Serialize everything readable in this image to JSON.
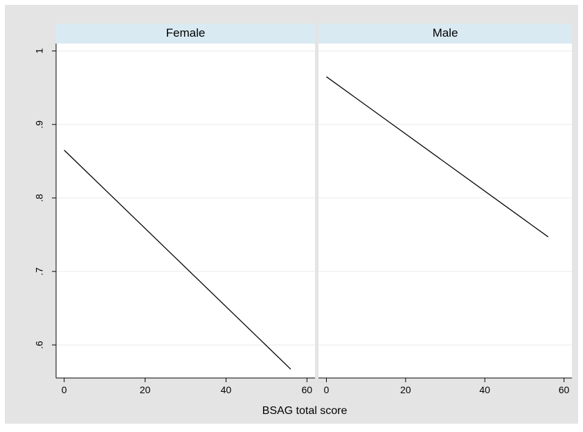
{
  "chart_data": {
    "type": "line",
    "xlabel": "BSAG total score",
    "ylabel": "",
    "xlim": [
      -2,
      62
    ],
    "ylim": [
      0.555,
      1.01
    ],
    "xticks": [
      0,
      20,
      40,
      60
    ],
    "xtick_labels": [
      "0",
      "20",
      "40",
      "60"
    ],
    "yticks": [
      0.6,
      0.7,
      0.8,
      0.9,
      1.0
    ],
    "ytick_labels": [
      ".6",
      ".7",
      ".8",
      ".9",
      "1"
    ],
    "grid": true,
    "panels": [
      {
        "title": "Female",
        "series": [
          {
            "x": [
              0,
              56
            ],
            "y": [
              0.865,
              0.567
            ]
          }
        ]
      },
      {
        "title": "Male",
        "series": [
          {
            "x": [
              0,
              56
            ],
            "y": [
              0.965,
              0.747
            ]
          }
        ]
      }
    ]
  },
  "colors": {
    "outer_background": "#e4e4e4",
    "panel_background": "#ffffff",
    "header_background": "#daeaf2",
    "gridline": "#eaeaea",
    "series_line": "#000000",
    "axis": "#000000"
  }
}
